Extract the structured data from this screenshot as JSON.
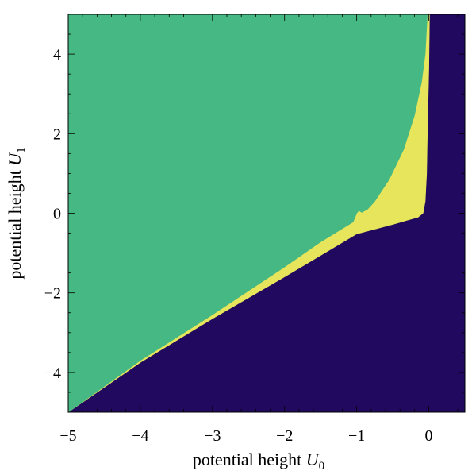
{
  "chart_data": {
    "type": "heatmap",
    "title": "",
    "xlabel": "potential height U0",
    "ylabel": "potential height U1",
    "xlim": [
      -5,
      0.5
    ],
    "ylim": [
      -5,
      5
    ],
    "x_ticks": [
      -5,
      -4,
      -3,
      -2,
      -1,
      0
    ],
    "x_tick_labels": [
      "−5",
      "−4",
      "−3",
      "−2",
      "−1",
      "0"
    ],
    "y_ticks": [
      -4,
      -2,
      0,
      2,
      4
    ],
    "y_tick_labels": [
      "−4",
      "−2",
      "0",
      "2",
      "4"
    ],
    "grid": false,
    "colors": {
      "green_region": "#46b883",
      "yellow_region": "#e6e55b",
      "dark_region": "#21095f"
    },
    "regions": [
      {
        "color_key": "dark_region",
        "points": [
          [
            -5,
            -5
          ],
          [
            0.5,
            -5
          ],
          [
            0.5,
            5
          ],
          [
            0.01,
            5
          ],
          [
            0.0,
            3.6
          ],
          [
            -0.02,
            2.0
          ],
          [
            -0.03,
            1.0
          ],
          [
            -0.05,
            0.3
          ],
          [
            -0.08,
            0.0
          ],
          [
            -0.15,
            -0.1
          ],
          [
            -0.5,
            -0.28
          ],
          [
            -1.0,
            -0.52
          ],
          [
            -2.0,
            -1.6
          ],
          [
            -3.0,
            -2.65
          ],
          [
            -4.0,
            -3.75
          ],
          [
            -5,
            -5
          ]
        ]
      },
      {
        "color_key": "yellow_region",
        "points": [
          [
            -5,
            -5
          ],
          [
            -4.0,
            -3.75
          ],
          [
            -3.0,
            -2.65
          ],
          [
            -2.0,
            -1.6
          ],
          [
            -1.0,
            -0.52
          ],
          [
            -0.5,
            -0.28
          ],
          [
            -0.15,
            -0.1
          ],
          [
            -0.08,
            0.0
          ],
          [
            -0.05,
            0.3
          ],
          [
            -0.03,
            1.0
          ],
          [
            -0.02,
            2.0
          ],
          [
            0.0,
            3.6
          ],
          [
            0.01,
            5
          ],
          [
            -0.02,
            5
          ],
          [
            -0.05,
            4.0
          ],
          [
            -0.1,
            3.3
          ],
          [
            -0.2,
            2.45
          ],
          [
            -0.35,
            1.6
          ],
          [
            -0.55,
            0.85
          ],
          [
            -0.75,
            0.3
          ],
          [
            -0.85,
            0.1
          ],
          [
            -0.93,
            0.02
          ],
          [
            -0.97,
            0.07
          ],
          [
            -1.0,
            0.0
          ],
          [
            -1.05,
            -0.22
          ],
          [
            -1.5,
            -0.72
          ],
          [
            -2.0,
            -1.35
          ],
          [
            -3.0,
            -2.55
          ],
          [
            -4.0,
            -3.7
          ],
          [
            -5,
            -5
          ]
        ]
      },
      {
        "color_key": "green_region",
        "points": [
          [
            -5,
            -5
          ],
          [
            -4.0,
            -3.7
          ],
          [
            -3.0,
            -2.55
          ],
          [
            -2.0,
            -1.35
          ],
          [
            -1.5,
            -0.72
          ],
          [
            -1.05,
            -0.22
          ],
          [
            -1.0,
            0.0
          ],
          [
            -0.97,
            0.07
          ],
          [
            -0.93,
            0.02
          ],
          [
            -0.85,
            0.1
          ],
          [
            -0.75,
            0.3
          ],
          [
            -0.55,
            0.85
          ],
          [
            -0.35,
            1.6
          ],
          [
            -0.2,
            2.45
          ],
          [
            -0.1,
            3.3
          ],
          [
            -0.05,
            4.0
          ],
          [
            -0.02,
            5
          ],
          [
            -5,
            5
          ]
        ]
      }
    ]
  }
}
